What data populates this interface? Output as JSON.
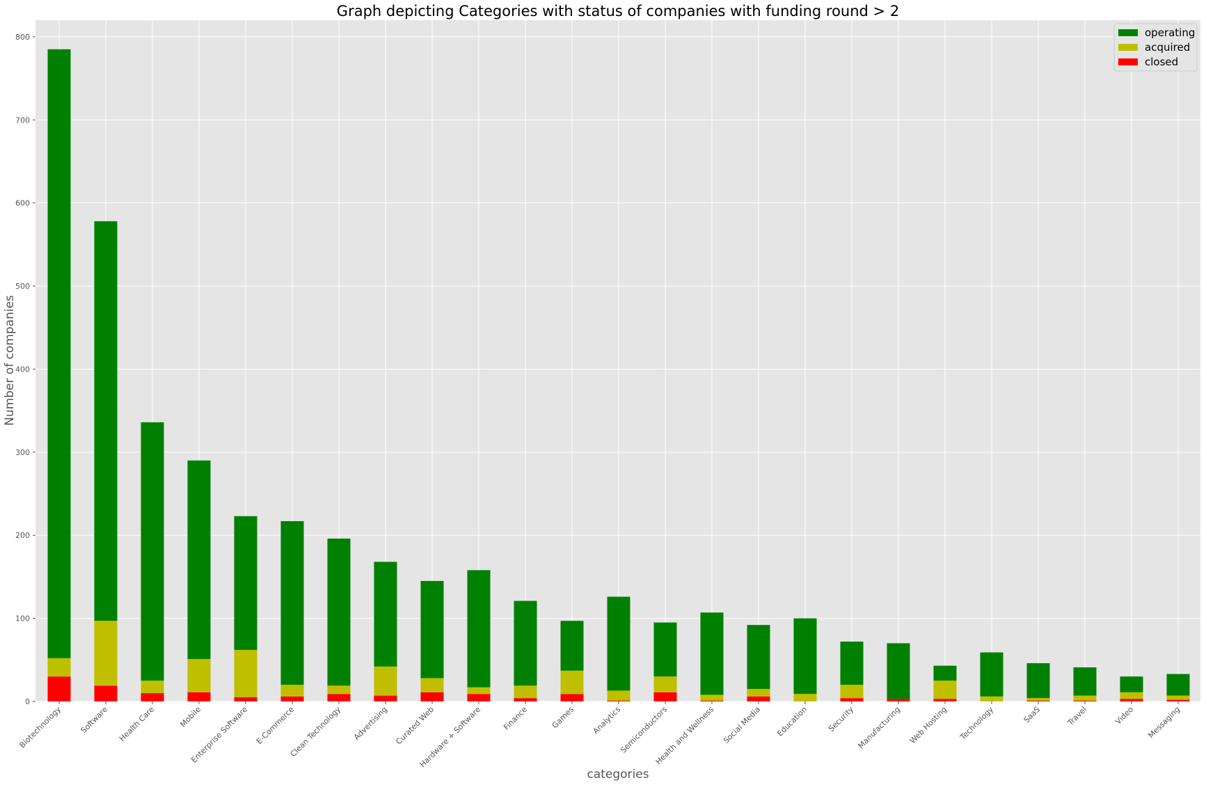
{
  "chart_data": {
    "type": "bar",
    "stacked": true,
    "title": "Graph depicting Categories with status of companies with funding round > 2",
    "xlabel": "categories",
    "ylabel": "Number of companies",
    "ylim": [
      0,
      820
    ],
    "yticks": [
      0,
      100,
      200,
      300,
      400,
      500,
      600,
      700,
      800
    ],
    "grid": true,
    "legend_position": "top-right",
    "categories": [
      "Biotechnology",
      "Software",
      "Health Care",
      "Mobile",
      "Enterprise Software",
      "E-Commerce",
      "Clean Technology",
      "Advertising",
      "Curated Web",
      "Hardware + Software",
      "Finance",
      "Games",
      "Analytics",
      "Semiconductors",
      "Health and Wellness",
      "Social Media",
      "Education",
      "Security",
      "Manufacturing",
      "Web Hosting",
      "Technology",
      "SaaS",
      "Travel",
      "Video",
      "Messaging"
    ],
    "series": [
      {
        "name": "operating",
        "color": "#008000",
        "values": [
          733,
          481,
          311,
          239,
          161,
          197,
          177,
          126,
          117,
          141,
          102,
          60,
          113,
          65,
          99,
          77,
          91,
          52,
          67,
          18,
          53,
          42,
          34,
          19,
          26
        ]
      },
      {
        "name": "acquired",
        "color": "#bfbf00",
        "values": [
          22,
          78,
          15,
          40,
          57,
          14,
          10,
          35,
          17,
          8,
          15,
          28,
          12,
          19,
          7,
          9,
          9,
          16,
          0,
          22,
          6,
          3,
          6,
          8,
          5
        ]
      },
      {
        "name": "closed",
        "color": "#ff0000",
        "values": [
          30,
          19,
          10,
          11,
          5,
          6,
          9,
          7,
          11,
          9,
          4,
          9,
          1,
          11,
          1,
          6,
          0,
          4,
          3,
          3,
          0,
          1,
          1,
          3,
          2
        ]
      }
    ]
  }
}
